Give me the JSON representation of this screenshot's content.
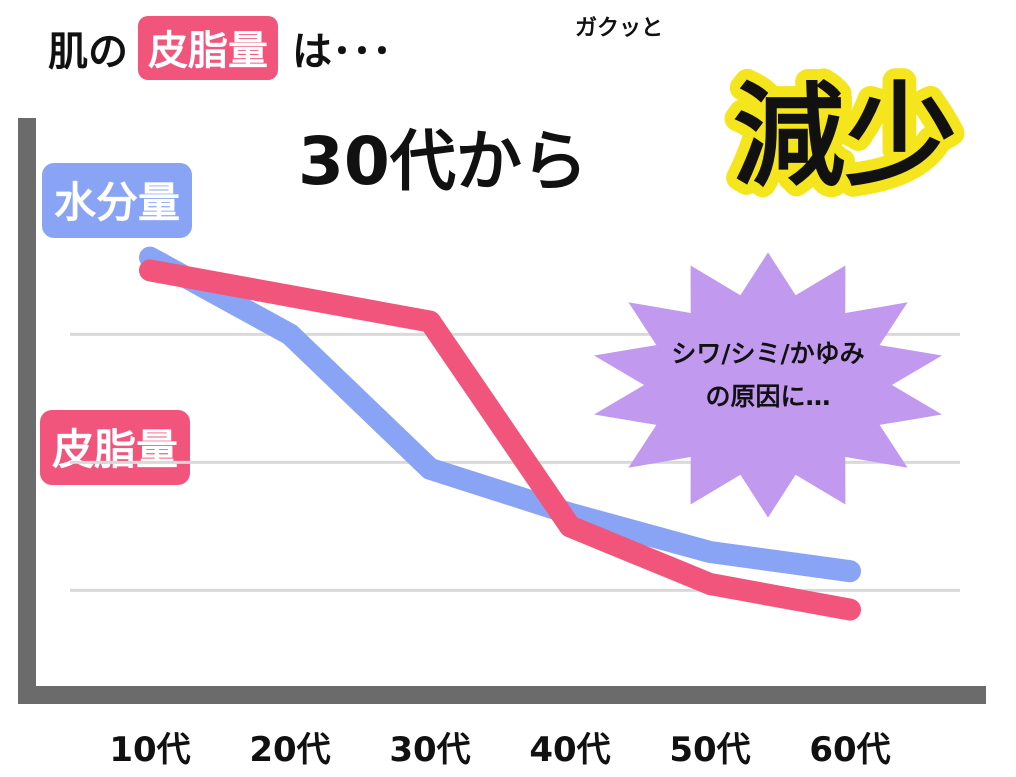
{
  "header": {
    "line1_prefix": "肌の",
    "line1_badge": "皮脂量",
    "line1_suffix": "は･･･",
    "ruby": "ガクッと",
    "line2_text": "30代から",
    "line2_emphasis": "減少"
  },
  "callout": {
    "line1": "シワ/シミ/かゆみ",
    "line2": "の原因に…"
  },
  "colors": {
    "water": "#8aa4f5",
    "sebum": "#f1557c",
    "callout_fill": "#c19af0",
    "emphasis_outline": "#f5e51d",
    "axis": "#6b6b6b",
    "grid": "#d9d9d9"
  },
  "chart_data": {
    "type": "line",
    "categories": [
      "10代",
      "20代",
      "30代",
      "40代",
      "50代",
      "60代"
    ],
    "series": [
      {
        "name": "水分量",
        "values": [
          2.6,
          2.0,
          0.95,
          0.6,
          0.3,
          0.15
        ]
      },
      {
        "name": "皮脂量",
        "values": [
          2.5,
          2.3,
          2.1,
          0.5,
          0.05,
          -0.15
        ]
      }
    ],
    "ylim": [
      -0.7,
      3.05
    ],
    "grid": true,
    "title": "",
    "xlabel": "",
    "ylabel": ""
  }
}
